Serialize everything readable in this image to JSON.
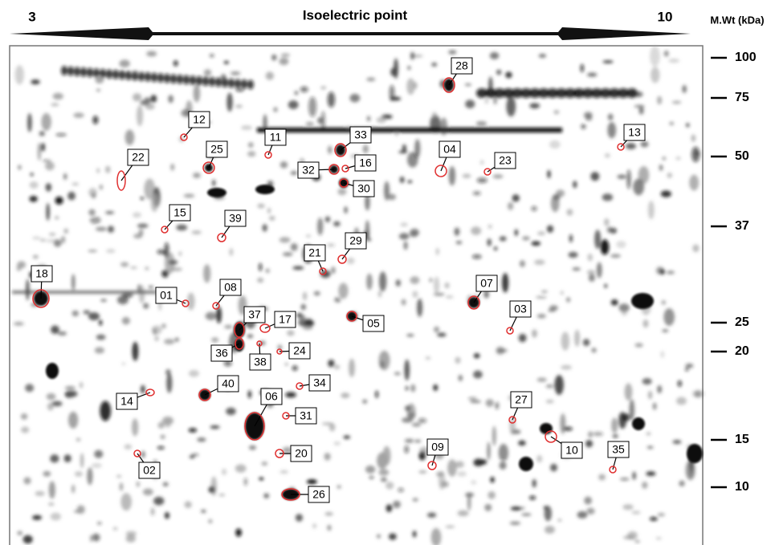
{
  "header": {
    "pi_min": "3",
    "title": "Isoelectric point",
    "pi_max": "10",
    "mw_label": "M.Wt (kDa)"
  },
  "mw_markers": [
    100,
    75,
    50,
    37,
    25,
    20,
    15,
    10
  ],
  "spots": [
    "12",
    "11",
    "33",
    "28",
    "13",
    "04",
    "23",
    "22",
    "25",
    "32",
    "16",
    "30",
    "15",
    "39",
    "29",
    "21",
    "18",
    "01",
    "08",
    "07",
    "03",
    "37",
    "17",
    "05",
    "36",
    "38",
    "24",
    "34",
    "40",
    "14",
    "06",
    "31",
    "27",
    "09",
    "10",
    "35",
    "20",
    "02",
    "26"
  ]
}
